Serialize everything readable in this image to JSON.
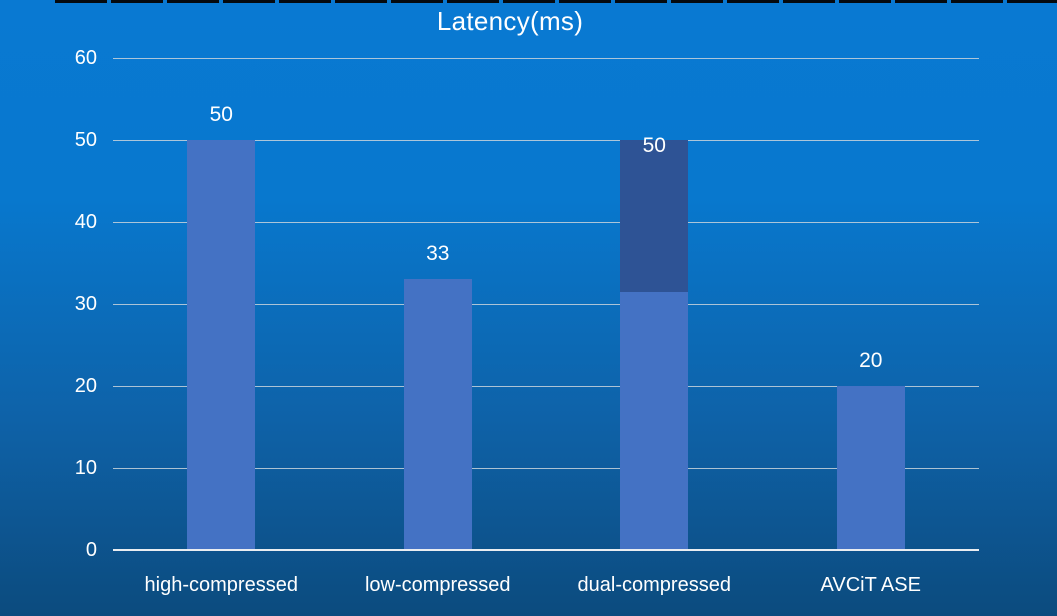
{
  "chart_data": {
    "type": "bar",
    "title": "Latency(ms)",
    "xlabel": "",
    "ylabel": "",
    "categories": [
      "high-compressed",
      "low-compressed",
      "dual-compressed",
      "AVCiT ASE"
    ],
    "values": [
      50,
      33,
      50,
      20
    ],
    "bars": [
      {
        "category": "high-compressed",
        "label": "50",
        "label_placement": "above",
        "segments": [
          {
            "value": 50,
            "color": "#4472C4"
          }
        ]
      },
      {
        "category": "low-compressed",
        "label": "33",
        "label_placement": "above",
        "segments": [
          {
            "value": 33,
            "color": "#4472C4"
          }
        ]
      },
      {
        "category": "dual-compressed",
        "label": "50",
        "label_placement": "inside-top",
        "segments": [
          {
            "value": 31.5,
            "color": "#4472C4"
          },
          {
            "value": 18.5,
            "color": "#2E5395"
          }
        ]
      },
      {
        "category": "AVCiT ASE",
        "label": "20",
        "label_placement": "above",
        "segments": [
          {
            "value": 20,
            "color": "#4472C4"
          }
        ]
      }
    ],
    "ylim": [
      0,
      60
    ],
    "ytick_interval": 10,
    "yticks": [
      "0",
      "10",
      "20",
      "30",
      "40",
      "50",
      "60"
    ],
    "grid": true,
    "legend": "none"
  },
  "colors": {
    "background_top": "#0979D2",
    "background_bottom": "#0C4B7E",
    "bar_primary": "#4472C4",
    "bar_dark": "#2E5395",
    "gridline": "#C9D3DC",
    "axis_line": "#E9EDF1",
    "text": "#FFFFFF"
  }
}
